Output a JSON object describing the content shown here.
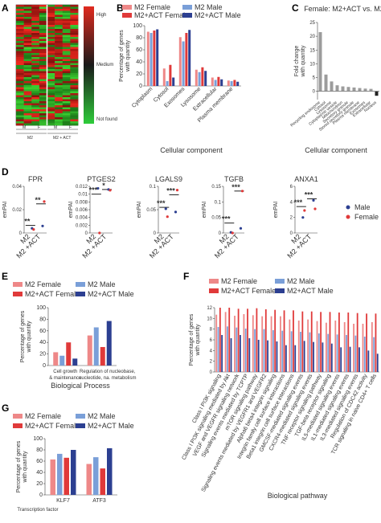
{
  "colors": {
    "m2_female": "#ee8888",
    "m2_male": "#7a9fd8",
    "act_female": "#e03a3a",
    "act_male": "#2c3f91",
    "grey": "#9c9c9c"
  },
  "panels": {
    "A": {
      "label": "A",
      "legend": {
        "high": "High",
        "medium": "Medium",
        "low": "Not found"
      },
      "groups": [
        {
          "label": "M2",
          "sub": [
            "M",
            "F"
          ]
        },
        {
          "label": "M2 + ACT",
          "sub": [
            "M",
            "F"
          ]
        }
      ]
    },
    "B": {
      "label": "B"
    },
    "C": {
      "label": "C"
    },
    "D": {
      "label": "D"
    },
    "E": {
      "label": "E"
    },
    "F": {
      "label": "F"
    },
    "G": {
      "label": "G"
    }
  },
  "chart_data": [
    {
      "id": "B",
      "type": "bar",
      "ylabel": "Percentage of genes with quantity",
      "xlabel": "Cellular component",
      "categories": [
        "Cytoplasm",
        "Cytosol",
        "Exosomes",
        "Lysosome",
        "Extracellular",
        "Plasma membrane"
      ],
      "ylim": [
        0,
        100
      ],
      "yticks": [
        "0",
        "20",
        "40",
        "60",
        "80",
        "100"
      ],
      "legend": [
        "M2 Female",
        "M2 Male",
        "M2+ACT Female",
        "M2+ACT Male"
      ],
      "series": [
        {
          "name": "M2 Female",
          "color": "#ee8888",
          "values": [
            90,
            29,
            81,
            27,
            14,
            9
          ]
        },
        {
          "name": "M2 Male",
          "color": "#7a9fd8",
          "values": [
            88,
            8,
            74,
            23,
            10,
            8
          ]
        },
        {
          "name": "M2+ACT Female",
          "color": "#e03a3a",
          "values": [
            92,
            35,
            88,
            31,
            15,
            10
          ]
        },
        {
          "name": "M2+ACT Male",
          "color": "#2c3f91",
          "values": [
            94,
            14,
            93,
            25,
            11,
            7
          ]
        }
      ]
    },
    {
      "id": "C",
      "type": "bar",
      "title": "Female: M2+ACT vs. M2",
      "ylabel": "Fold change with quantity",
      "xlabel": "Cellular component",
      "categories": [
        "Recycling endosome",
        "Cytosol",
        "Lysosome",
        "Cytoplasmic vesicle",
        "Mitochondrion",
        "Secretory granule",
        "Stored secretory granule",
        "Plasma membrane",
        "Exosomes",
        "Extracellular",
        "Nucleus"
      ],
      "ylim": [
        -3,
        25
      ],
      "yticks": [
        "0",
        "5",
        "10",
        "15",
        "20",
        "25"
      ],
      "values": [
        21.5,
        6.1,
        3.6,
        2.2,
        1.8,
        1.6,
        1.4,
        1.2,
        1,
        0.9,
        -1.6
      ]
    },
    {
      "id": "D",
      "type": "scatter",
      "ylabel": "emPAI",
      "categories": [
        "M2",
        "M2 +ACT"
      ],
      "legend": [
        "Male",
        "Female"
      ],
      "series_colors": {
        "Male": "#2c3f91",
        "Female": "#e03a3a"
      },
      "subplots": [
        {
          "title": "FPR",
          "ylim": [
            0,
            0.04
          ],
          "yticks": [
            "0",
            "0.02",
            "0.04"
          ],
          "male": [
            0.004,
            0.006
          ],
          "female": [
            0.003,
            0.027
          ],
          "mean": [
            0.0065,
            0.025
          ],
          "stars": [
            "**",
            "**"
          ]
        },
        {
          "title": "PTGES2",
          "ylim": [
            0,
            0.012
          ],
          "yticks": [
            "0",
            "0.002",
            "0.004",
            "0.006",
            "0.008",
            "0.01",
            "0.012"
          ],
          "male": [
            0.0115,
            0.0112
          ],
          "female": [
            0,
            0.011
          ],
          "mean": [
            0.01,
            0.0112
          ],
          "stars": [
            "***",
            "*"
          ]
        },
        {
          "title": "LGALS9",
          "ylim": [
            0,
            0.1
          ],
          "yticks": [
            "0",
            "0.05",
            "0.1"
          ],
          "male": [
            0.052,
            0.045
          ],
          "female": [
            0.035,
            0.092
          ],
          "mean": [
            0.055,
            0.082
          ],
          "stars": [
            "***",
            "***"
          ]
        },
        {
          "title": "TGFB",
          "ylim": [
            0,
            0.15
          ],
          "yticks": [
            "0",
            "0.05",
            "0.1",
            "0.15"
          ],
          "male": [
            0.002,
            0.015
          ],
          "female": [
            0,
            0.135
          ],
          "mean": [
            0.032,
            0.135
          ],
          "stars": [
            "***",
            "***"
          ]
        },
        {
          "title": "ANXA1",
          "ylim": [
            0,
            6
          ],
          "yticks": [
            "0",
            "2",
            "4",
            "6"
          ],
          "male": [
            2.0,
            4.2
          ],
          "female": [
            2.9,
            3.1
          ],
          "mean": [
            3.4,
            4.4
          ],
          "stars": [
            "***",
            "***"
          ]
        }
      ]
    },
    {
      "id": "E",
      "type": "bar",
      "ylabel": "Percentage of genes with quantity",
      "xlabel": "Biological Process",
      "categories": [
        "Cell growth & maintenance",
        "Regulation of nucleobase, nucleotide, na. metabolism"
      ],
      "ylim": [
        0,
        100
      ],
      "yticks": [
        "0",
        "20",
        "40",
        "60",
        "80",
        "100"
      ],
      "legend": [
        "M2 Female",
        "M2 Male",
        "M2+ACT Female",
        "M2+ACT Male"
      ],
      "series": [
        {
          "name": "M2 Female",
          "color": "#ee8888",
          "values": [
            23,
            52
          ]
        },
        {
          "name": "M2 Male",
          "color": "#7a9fd8",
          "values": [
            17,
            66
          ]
        },
        {
          "name": "M2+ACT Female",
          "color": "#e03a3a",
          "values": [
            40,
            32
          ]
        },
        {
          "name": "M2+ACT Male",
          "color": "#2c3f91",
          "values": [
            12,
            77
          ]
        }
      ]
    },
    {
      "id": "F",
      "type": "bar",
      "ylabel": "Percentage of genes with quantity",
      "xlabel": "Biological pathway",
      "categories": [
        "Class I PI3K signaling",
        "Class I PI3K signaling mediated by Akt",
        "VEGF and VEGFR signaling network",
        "Signaling events mediated by TCPTP",
        "mTOR signaling pathway",
        "Signaling events mediated by VEGFR1 and VEGFR2",
        "Alpha6 beta4 integrin signaling",
        "Integrin family cell surface interactions",
        "Beta1 integrin cell surface interactions",
        "GMCSF-mediated signaling events",
        "CXCR4-mediated signaling events",
        "TNF receptor signaling pathway",
        "TGF-beta receptor signaling",
        "IL5-mediated signaling events",
        "IL1-mediated signaling events",
        "IL3-mediated signaling events",
        "Regulation of CDC42 activity",
        "TCR signaling in naive CD4+ T cells"
      ],
      "ylim": [
        0,
        12
      ],
      "yticks": [
        "0",
        "2",
        "4",
        "6",
        "8",
        "10",
        "12"
      ],
      "legend": [
        "M2 Female",
        "M2 Male",
        "M2+ACT Female",
        "M2+ACT Male"
      ],
      "series": [
        {
          "name": "M2 Female",
          "color": "#ee8888",
          "values": [
            10.7,
            11.2,
            10.5,
            10.8,
            10.6,
            10.4,
            10.4,
            10.4,
            9.8,
            9.6,
            9.8,
            9.5,
            9.2,
            9.6,
            9.3,
            9.0,
            9.0,
            9.3
          ]
        },
        {
          "name": "M2 Male",
          "color": "#7a9fd8",
          "values": [
            8.4,
            8.5,
            8.3,
            8.1,
            8.0,
            8.0,
            7.8,
            7.7,
            7.6,
            7.5,
            7.4,
            7.2,
            7.1,
            7.0,
            6.9,
            6.8,
            6.6,
            6.5
          ]
        },
        {
          "name": "M2+ACT Female",
          "color": "#e03a3a",
          "values": [
            12.0,
            12.0,
            11.8,
            11.8,
            11.9,
            11.7,
            11.6,
            11.5,
            11.5,
            11.3,
            11.3,
            11.2,
            11.2,
            11.1,
            11.1,
            11.0,
            10.9,
            10.9
          ]
        },
        {
          "name": "M2+ACT Male",
          "color": "#2c3f91",
          "values": [
            6.9,
            6.3,
            6.9,
            6.3,
            6.0,
            5.9,
            5.7,
            5.0,
            5.0,
            5.8,
            5.6,
            5.5,
            5.3,
            4.6,
            4.7,
            4.6,
            4.0,
            3.4
          ]
        }
      ]
    },
    {
      "id": "G",
      "type": "bar",
      "ylabel": "Percentage of genes with quantity",
      "xlabel": "Transcription factor",
      "categories": [
        "KLF7",
        "ATF3"
      ],
      "ylim": [
        0,
        100
      ],
      "yticks": [
        "0",
        "20",
        "40",
        "60",
        "80",
        "100"
      ],
      "legend": [
        "M2 Female",
        "M2 Male",
        "M2+ACT Female",
        "M2+ACT Male"
      ],
      "series": [
        {
          "name": "M2 Female",
          "color": "#ee8888",
          "values": [
            63,
            55
          ]
        },
        {
          "name": "M2 Male",
          "color": "#7a9fd8",
          "values": [
            73,
            67
          ]
        },
        {
          "name": "M2+ACT Female",
          "color": "#e03a3a",
          "values": [
            66,
            47
          ]
        },
        {
          "name": "M2+ACT Male",
          "color": "#2c3f91",
          "values": [
            80,
            83
          ]
        }
      ]
    }
  ]
}
